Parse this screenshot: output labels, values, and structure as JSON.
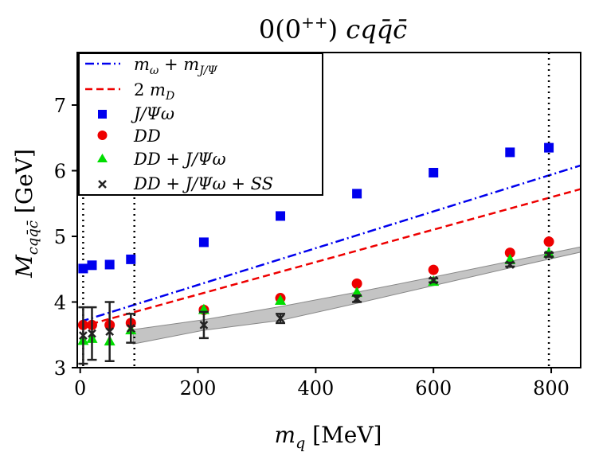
{
  "chart_data": {
    "type": "scatter",
    "title": "0(0⁺⁺) cqq̄c̄",
    "xlabel": "m_q [MeV]",
    "ylabel": "M_cqq̄c̄ [GeV]",
    "xlim": [
      -5,
      850
    ],
    "ylim": [
      3,
      7.8
    ],
    "xticks": [
      0,
      200,
      400,
      600,
      800
    ],
    "xtick_labels": [
      "0",
      "200",
      "400",
      "600",
      "800"
    ],
    "yticks": [
      3,
      4,
      5,
      6,
      7
    ],
    "ytick_labels": [
      "3",
      "4",
      "5",
      "6",
      "7"
    ],
    "vlines": [
      5,
      92,
      796
    ],
    "grid": false,
    "legend_position": "top-left",
    "lines": [
      {
        "name": "m_ω + m_J/Ψ",
        "style": "dashdot",
        "color": "#0000ee",
        "x": [
          0,
          850
        ],
        "y": [
          3.7,
          6.08
        ]
      },
      {
        "name": "2 m_D",
        "style": "dashed",
        "color": "#ee0000",
        "x": [
          0,
          850
        ],
        "y": [
          3.62,
          5.72
        ]
      }
    ],
    "band": {
      "color": "#b0b0b0",
      "x": [
        90,
        210,
        340,
        470,
        600,
        730,
        850
      ],
      "lower": [
        3.36,
        3.57,
        3.72,
        3.98,
        4.25,
        4.52,
        4.76
      ],
      "upper": [
        3.58,
        3.73,
        3.93,
        4.15,
        4.38,
        4.62,
        4.84
      ]
    },
    "series": [
      {
        "name": "J/Ψω",
        "marker": "square",
        "color": "#0000ee",
        "x": [
          5,
          20,
          50,
          86,
          210,
          340,
          470,
          600,
          730,
          796
        ],
        "y": [
          4.51,
          4.56,
          4.57,
          4.65,
          4.91,
          5.31,
          5.65,
          5.97,
          6.28,
          6.35
        ]
      },
      {
        "name": "DD",
        "marker": "circle",
        "color": "#ee0000",
        "x": [
          5,
          20,
          50,
          86,
          210,
          340,
          470,
          600,
          730,
          796
        ],
        "y": [
          3.65,
          3.65,
          3.65,
          3.68,
          3.88,
          4.06,
          4.28,
          4.49,
          4.75,
          4.92
        ]
      },
      {
        "name": "DD + J/Ψω",
        "marker": "triangle",
        "color": "#00dd00",
        "x": [
          5,
          20,
          50,
          86,
          210,
          340,
          470,
          600,
          730,
          796
        ],
        "y": [
          3.42,
          3.45,
          3.41,
          3.58,
          3.89,
          4.03,
          4.15,
          4.32,
          4.65,
          4.75
        ]
      },
      {
        "name": "DD + J/Ψω + SS",
        "marker": "x",
        "color": "#222222",
        "x": [
          5,
          20,
          50,
          86,
          210,
          340,
          470,
          600,
          730,
          796
        ],
        "y": [
          3.49,
          3.52,
          3.55,
          3.6,
          3.65,
          3.75,
          4.05,
          4.33,
          4.57,
          4.72
        ],
        "yerr": [
          0.43,
          0.4,
          0.45,
          0.22,
          0.2,
          0.07,
          0.05,
          0.03,
          0.03,
          0.03
        ]
      }
    ]
  }
}
